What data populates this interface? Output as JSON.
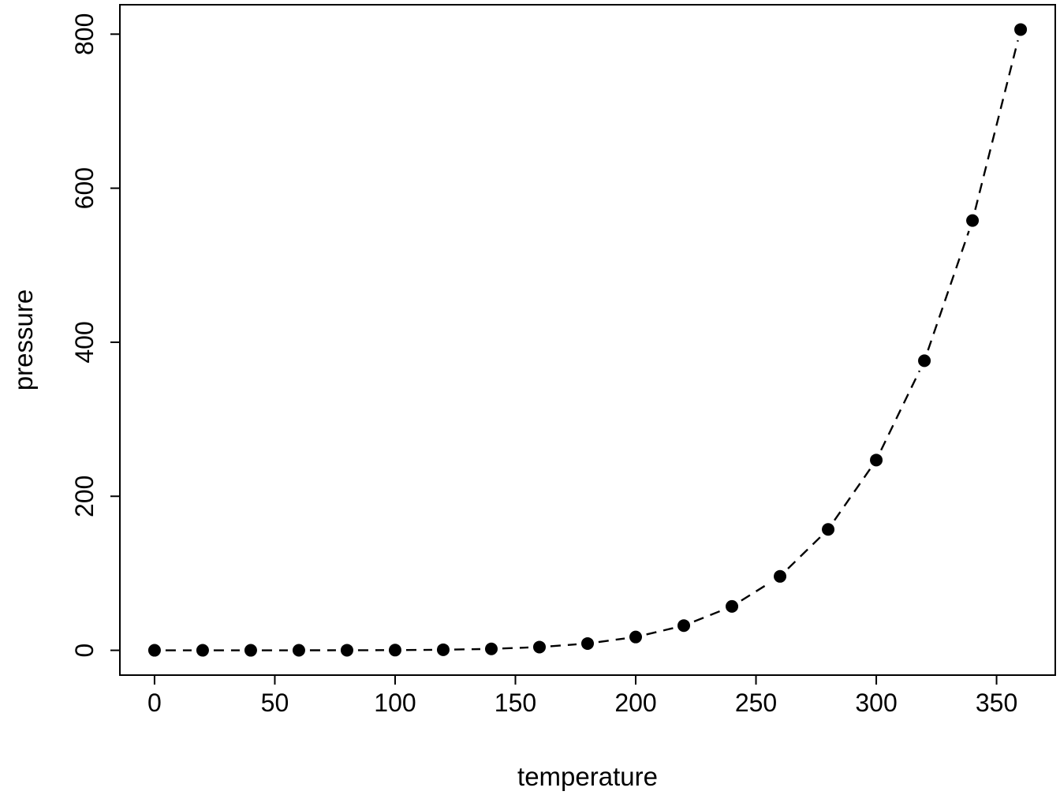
{
  "chart_data": {
    "type": "line",
    "title": "",
    "xlabel": "temperature",
    "ylabel": "pressure",
    "x": [
      0,
      20,
      40,
      60,
      80,
      100,
      120,
      140,
      160,
      180,
      200,
      220,
      240,
      260,
      280,
      300,
      320,
      340,
      360
    ],
    "y": [
      0.0002,
      0.0012,
      0.006,
      0.03,
      0.09,
      0.27,
      0.75,
      1.85,
      4.2,
      8.8,
      17.3,
      32.1,
      57,
      96,
      157,
      247,
      376,
      558,
      806
    ],
    "xticks": [
      0,
      50,
      100,
      150,
      200,
      250,
      300,
      350
    ],
    "yticks": [
      0,
      200,
      400,
      600,
      800
    ],
    "xlim": [
      -14.4,
      374.4
    ],
    "ylim": [
      -32.2,
      838.2
    ],
    "grid": false,
    "legend": false,
    "marker": "filled-circle",
    "line_style": "dashed",
    "color": "#000000",
    "background": "#ffffff"
  }
}
